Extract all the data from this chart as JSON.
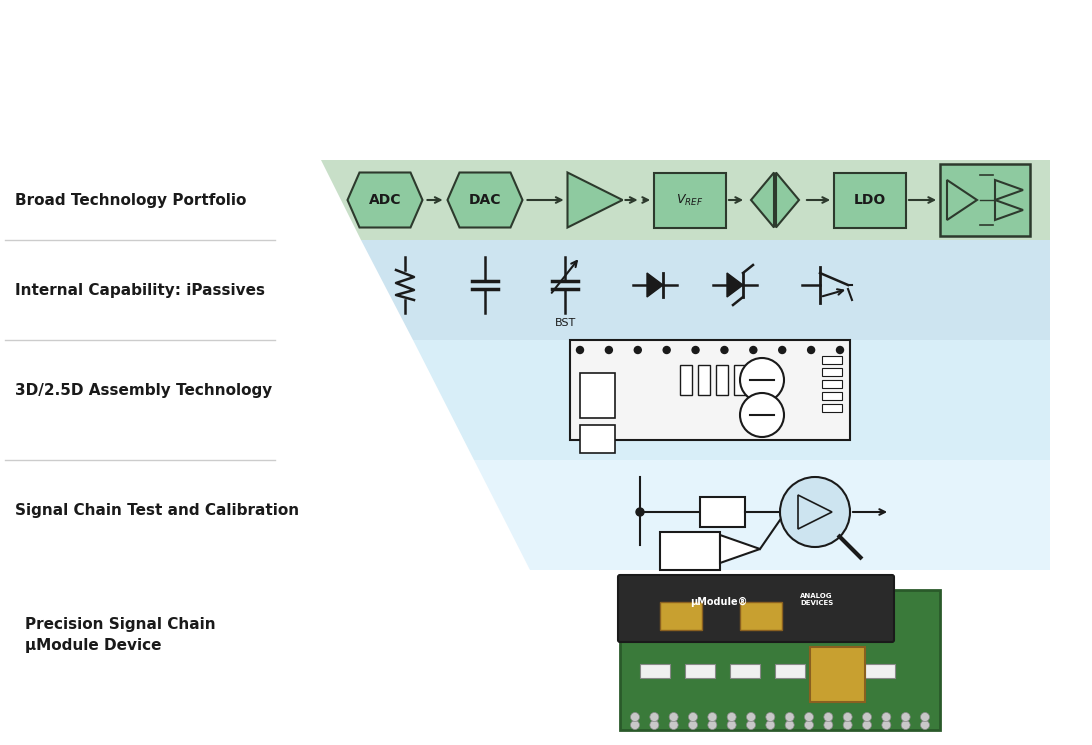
{
  "bg_color": "#ffffff",
  "title_label": "Broad Technology Portfolio",
  "label2": "Internal Capability: iPassives",
  "label3": "3D/2.5D Assembly Technology",
  "label4": "Signal Chain Test and Calibration",
  "label5": "Precision Signal Chain\nμModule Device",
  "tier1_color": "#b8d8c0",
  "tier2_color": "#d6ebf5",
  "tier3_color": "#e3f3fb",
  "tier4_color": "#eef8fd",
  "adc_label": "ADC",
  "dac_label": "DAC",
  "vref_label": "VₛEF",
  "ldo_label": "LDO",
  "border_color": "#2d3a2d",
  "green_fill": "#8dc4a0",
  "text_color": "#1a1a1a",
  "divider_color": "#cccccc"
}
